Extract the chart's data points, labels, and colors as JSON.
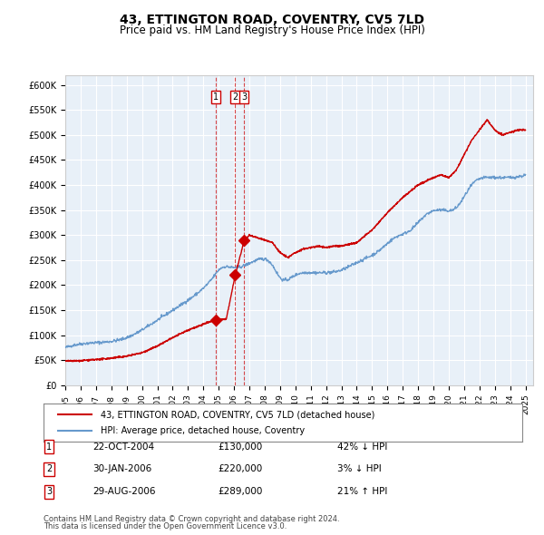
{
  "title": "43, ETTINGTON ROAD, COVENTRY, CV5 7LD",
  "subtitle": "Price paid vs. HM Land Registry's House Price Index (HPI)",
  "legend_line1": "43, ETTINGTON ROAD, COVENTRY, CV5 7LD (detached house)",
  "legend_line2": "HPI: Average price, detached house, Coventry",
  "footer1": "Contains HM Land Registry data © Crown copyright and database right 2024.",
  "footer2": "This data is licensed under the Open Government Licence v3.0.",
  "transactions": [
    {
      "num": 1,
      "date": "22-OCT-2004",
      "price": 130000,
      "hpi_rel": "42% ↓ HPI",
      "date_val": "2004-10-22"
    },
    {
      "num": 2,
      "date": "30-JAN-2006",
      "price": 220000,
      "hpi_rel": "3% ↓ HPI",
      "date_val": "2006-01-30"
    },
    {
      "num": 3,
      "date": "29-AUG-2006",
      "price": 289000,
      "hpi_rel": "21% ↑ HPI",
      "date_val": "2006-08-29"
    }
  ],
  "hpi_color": "#6699cc",
  "price_color": "#cc0000",
  "bg_color": "#e8f0f8",
  "grid_color": "#ffffff",
  "ylim": [
    0,
    620000
  ],
  "yticks": [
    0,
    50000,
    100000,
    150000,
    200000,
    250000,
    300000,
    350000,
    400000,
    450000,
    500000,
    550000,
    600000
  ],
  "ytick_labels": [
    "£0",
    "£50K",
    "£100K",
    "£150K",
    "£200K",
    "£250K",
    "£300K",
    "£350K",
    "£400K",
    "£450K",
    "£500K",
    "£550K",
    "£600K"
  ]
}
